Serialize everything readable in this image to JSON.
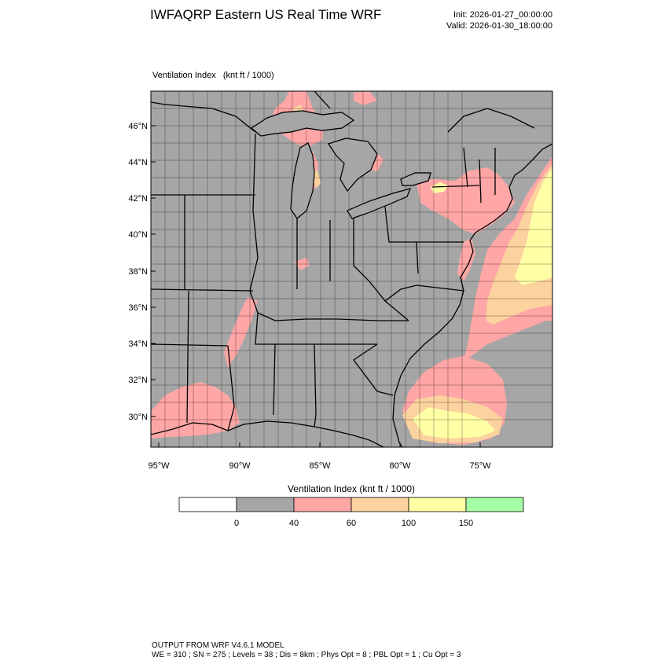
{
  "header": {
    "title": "IWFAQRP Eastern US Real Time WRF",
    "init": "Init: 2026-01-27_00:00:00",
    "valid": "Valid: 2026-01-30_18:00:00"
  },
  "field_label": "Ventilation Index   (knt ft / 1000)",
  "map": {
    "lat_labels": [
      "46°N",
      "44°N",
      "42°N",
      "40°N",
      "38°N",
      "36°N",
      "34°N",
      "32°N",
      "30°N"
    ],
    "lon_labels": [
      "95°W",
      "90°W",
      "85°W",
      "80°W",
      "75°W"
    ],
    "colors": {
      "land_low": "#a6a6a6",
      "water": "#a6a6a6",
      "band_40_60": "#ffa6a6",
      "band_60_100": "#fcd29f",
      "band_100_150": "#ffffa6",
      "band_150_plus": "#a6ffa6",
      "boundary": "#000000"
    }
  },
  "colorbar": {
    "title": "Ventilation Index  (knt ft / 1000)",
    "colors": [
      "#ffffff",
      "#a6a6a6",
      "#ffa6a6",
      "#fcd29f",
      "#ffffa6",
      "#a6ffa6"
    ],
    "tick_labels": [
      "0",
      "40",
      "60",
      "100",
      "150"
    ]
  },
  "footer": {
    "line1": "OUTPUT FROM WRF V4.6.1 MODEL",
    "line2": "WE = 310 ; SN = 275 ; Levels = 38 ; Dis = 8km ; Phys Opt = 8 ; PBL Opt = 1 ; Cu Opt = 3"
  }
}
